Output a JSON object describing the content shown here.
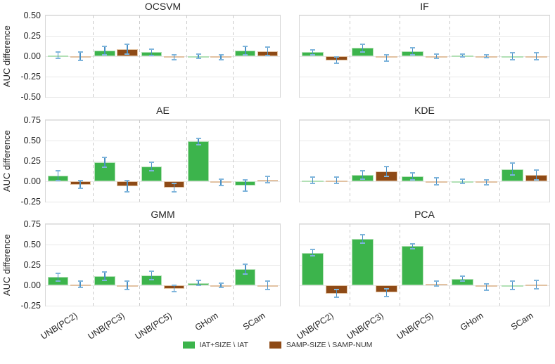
{
  "figure": {
    "ylabel": "AUC difference",
    "categories": [
      "UNB(PC2)",
      "UNB(PC3)",
      "UNB(PC5)",
      "GHom",
      "SCam"
    ],
    "legend": [
      {
        "label": "IAT+SIZE \\ IAT",
        "color": "#3cb44c",
        "edge_color": "#b2e0b5"
      },
      {
        "label": "SAMP-SIZE \\ SAMP-NUM",
        "color": "#8e4a16",
        "edge_color": "#e2c2a2"
      }
    ],
    "colors": {
      "error_line": "#4a90c4",
      "error_cap": "#7fb5dc",
      "grid": "#e8e8e8",
      "frame": "#d8d8d8"
    }
  },
  "chart_data": [
    {
      "type": "bar",
      "title": "OCSVM",
      "ylim": [
        -0.5,
        0.5
      ],
      "yticks": [
        0.5,
        0.25,
        0.0,
        -0.25,
        -0.5
      ],
      "categories": [
        "UNB(PC2)",
        "UNB(PC3)",
        "UNB(PC5)",
        "GHom",
        "SCam"
      ],
      "series": [
        {
          "name": "IAT+SIZE \\ IAT",
          "values": [
            0.01,
            0.07,
            0.05,
            0.0,
            0.07
          ],
          "errors": [
            0.04,
            0.05,
            0.04,
            0.03,
            0.05
          ]
        },
        {
          "name": "SAMP-SIZE \\ SAMP-NUM",
          "values": [
            0.0,
            0.09,
            -0.01,
            -0.01,
            0.06
          ],
          "errors": [
            0.05,
            0.06,
            0.03,
            0.03,
            0.05
          ]
        }
      ]
    },
    {
      "type": "bar",
      "title": "IF",
      "ylim": [
        -0.5,
        0.5
      ],
      "yticks": [
        0.5,
        0.25,
        0.0,
        -0.25,
        -0.5
      ],
      "categories": [
        "UNB(PC2)",
        "UNB(PC3)",
        "UNB(PC5)",
        "GHom",
        "SCam"
      ],
      "series": [
        {
          "name": "IAT+SIZE \\ IAT",
          "values": [
            0.05,
            0.1,
            0.06,
            0.01,
            0.0
          ],
          "errors": [
            0.03,
            0.05,
            0.04,
            0.02,
            0.04
          ]
        },
        {
          "name": "SAMP-SIZE \\ SAMP-NUM",
          "values": [
            -0.05,
            -0.02,
            0.0,
            0.0,
            0.0
          ],
          "errors": [
            0.04,
            0.04,
            0.03,
            0.02,
            0.04
          ]
        }
      ]
    },
    {
      "type": "bar",
      "title": "AE",
      "ylim": [
        -0.25,
        0.75
      ],
      "yticks": [
        0.75,
        0.5,
        0.25,
        0.0,
        -0.25
      ],
      "categories": [
        "UNB(PC2)",
        "UNB(PC3)",
        "UNB(PC5)",
        "GHom",
        "SCam"
      ],
      "series": [
        {
          "name": "IAT+SIZE \\ IAT",
          "values": [
            0.07,
            0.23,
            0.18,
            0.49,
            -0.05
          ],
          "errors": [
            0.06,
            0.06,
            0.05,
            0.04,
            0.07
          ]
        },
        {
          "name": "SAMP-SIZE \\ SAMP-NUM",
          "values": [
            -0.04,
            -0.06,
            -0.08,
            -0.01,
            0.02
          ],
          "errors": [
            0.05,
            0.07,
            0.05,
            0.04,
            0.04
          ]
        }
      ]
    },
    {
      "type": "bar",
      "title": "KDE",
      "ylim": [
        -0.25,
        0.75
      ],
      "yticks": [
        0.75,
        0.5,
        0.25,
        0.0,
        -0.25
      ],
      "categories": [
        "UNB(PC2)",
        "UNB(PC3)",
        "UNB(PC5)",
        "GHom",
        "SCam"
      ],
      "series": [
        {
          "name": "IAT+SIZE \\ IAT",
          "values": [
            0.01,
            0.08,
            0.06,
            0.0,
            0.15
          ],
          "errors": [
            0.04,
            0.05,
            0.04,
            0.03,
            0.07
          ]
        },
        {
          "name": "SAMP-SIZE \\ SAMP-NUM",
          "values": [
            0.01,
            0.12,
            0.0,
            -0.01,
            0.08
          ],
          "errors": [
            0.04,
            0.06,
            0.04,
            0.03,
            0.06
          ]
        }
      ]
    },
    {
      "type": "bar",
      "title": "GMM",
      "ylim": [
        -0.25,
        0.75
      ],
      "yticks": [
        0.75,
        0.5,
        0.25,
        0.0,
        -0.25
      ],
      "categories": [
        "UNB(PC2)",
        "UNB(PC3)",
        "UNB(PC5)",
        "GHom",
        "SCam"
      ],
      "series": [
        {
          "name": "IAT+SIZE \\ IAT",
          "values": [
            0.1,
            0.11,
            0.12,
            0.03,
            0.2
          ],
          "errors": [
            0.05,
            0.05,
            0.05,
            0.03,
            0.06
          ]
        },
        {
          "name": "SAMP-SIZE \\ SAMP-NUM",
          "values": [
            0.01,
            0.0,
            -0.04,
            0.0,
            0.0
          ],
          "errors": [
            0.04,
            0.05,
            0.04,
            0.03,
            0.05
          ]
        }
      ]
    },
    {
      "type": "bar",
      "title": "PCA",
      "ylim": [
        -0.25,
        0.75
      ],
      "yticks": [
        0.75,
        0.5,
        0.25,
        0.0,
        -0.25
      ],
      "categories": [
        "UNB(PC2)",
        "UNB(PC3)",
        "UNB(PC5)",
        "GHom",
        "SCam"
      ],
      "series": [
        {
          "name": "IAT+SIZE \\ IAT",
          "values": [
            0.4,
            0.57,
            0.48,
            0.08,
            0.0
          ],
          "errors": [
            0.04,
            0.05,
            0.03,
            0.03,
            0.05
          ]
        },
        {
          "name": "SAMP-SIZE \\ SAMP-NUM",
          "values": [
            -0.1,
            -0.09,
            0.02,
            -0.02,
            0.01
          ],
          "errors": [
            0.05,
            0.05,
            0.03,
            0.04,
            0.05
          ]
        }
      ]
    }
  ]
}
